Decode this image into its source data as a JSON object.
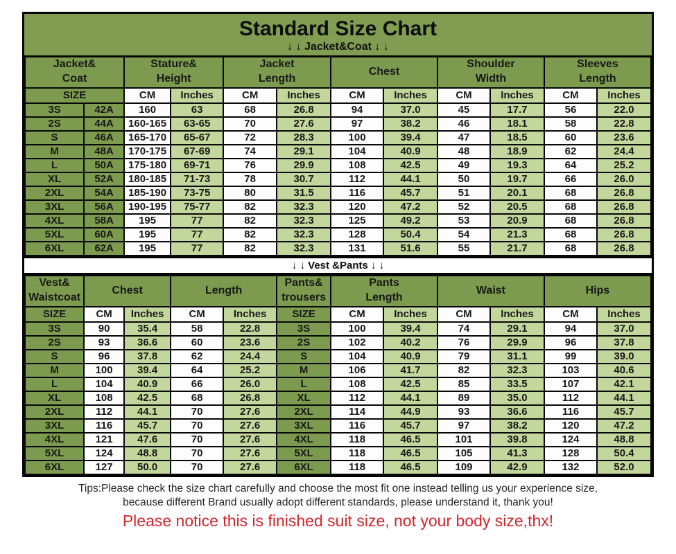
{
  "title": "Standard Size Chart",
  "colors": {
    "olive_green": "#7d9b4e",
    "light_green": "#c3d69b",
    "white": "#ffffff",
    "border_black": "#050505",
    "notice_red": "#d3242a"
  },
  "jacket_section": {
    "banner": "↓ ↓  Jacket&Coat ↓ ↓",
    "group_headers": [
      "Jacket&\nCoat",
      "Stature&\nHeight",
      "Jacket\nLength",
      "Chest",
      "Shoulder\nWidth",
      "Sleeves\nLength"
    ],
    "subheader": [
      "SIZE",
      "CM",
      "Inches",
      "CM",
      "Inches",
      "CM",
      "Inches",
      "CM",
      "Inches",
      "CM",
      "Inches"
    ],
    "rows": [
      [
        "3S",
        "42A",
        "160",
        "63",
        "68",
        "26.8",
        "94",
        "37.0",
        "45",
        "17.7",
        "56",
        "22.0"
      ],
      [
        "2S",
        "44A",
        "160-165",
        "63-65",
        "70",
        "27.6",
        "97",
        "38.2",
        "46",
        "18.1",
        "58",
        "22.8"
      ],
      [
        "S",
        "46A",
        "165-170",
        "65-67",
        "72",
        "28.3",
        "100",
        "39.4",
        "47",
        "18.5",
        "60",
        "23.6"
      ],
      [
        "M",
        "48A",
        "170-175",
        "67-69",
        "74",
        "29.1",
        "104",
        "40.9",
        "48",
        "18.9",
        "62",
        "24.4"
      ],
      [
        "L",
        "50A",
        "175-180",
        "69-71",
        "76",
        "29.9",
        "108",
        "42.5",
        "49",
        "19.3",
        "64",
        "25.2"
      ],
      [
        "XL",
        "52A",
        "180-185",
        "71-73",
        "78",
        "30.7",
        "112",
        "44.1",
        "50",
        "19.7",
        "66",
        "26.0"
      ],
      [
        "2XL",
        "54A",
        "185-190",
        "73-75",
        "80",
        "31.5",
        "116",
        "45.7",
        "51",
        "20.1",
        "68",
        "26.8"
      ],
      [
        "3XL",
        "56A",
        "190-195",
        "75-77",
        "82",
        "32.3",
        "120",
        "47.2",
        "52",
        "20.5",
        "68",
        "26.8"
      ],
      [
        "4XL",
        "58A",
        "195",
        "77",
        "82",
        "32.3",
        "125",
        "49.2",
        "53",
        "20.9",
        "68",
        "26.8"
      ],
      [
        "5XL",
        "60A",
        "195",
        "77",
        "82",
        "32.3",
        "128",
        "50.4",
        "54",
        "21.3",
        "68",
        "26.8"
      ],
      [
        "6XL",
        "62A",
        "195",
        "77",
        "82",
        "32.3",
        "131",
        "51.6",
        "55",
        "21.7",
        "68",
        "26.8"
      ]
    ]
  },
  "vest_section": {
    "banner": "↓ ↓  Vest &Pants ↓ ↓",
    "group_headers": [
      "Vest&\nWaistcoat",
      "Chest",
      "Length",
      "Pants&\ntrousers",
      "Pants\nLength",
      "Waist",
      "Hips"
    ],
    "subheader": [
      "SIZE",
      "CM",
      "Inches",
      "CM",
      "Inches",
      "SIZE",
      "CM",
      "Inches",
      "CM",
      "Inches",
      "CM",
      "Inches"
    ],
    "rows": [
      [
        "3S",
        "90",
        "35.4",
        "58",
        "22.8",
        "3S",
        "100",
        "39.4",
        "74",
        "29.1",
        "94",
        "37.0"
      ],
      [
        "2S",
        "93",
        "36.6",
        "60",
        "23.6",
        "2S",
        "102",
        "40.2",
        "76",
        "29.9",
        "96",
        "37.8"
      ],
      [
        "S",
        "96",
        "37.8",
        "62",
        "24.4",
        "S",
        "104",
        "40.9",
        "79",
        "31.1",
        "99",
        "39.0"
      ],
      [
        "M",
        "100",
        "39.4",
        "64",
        "25.2",
        "M",
        "106",
        "41.7",
        "82",
        "32.3",
        "103",
        "40.6"
      ],
      [
        "L",
        "104",
        "40.9",
        "66",
        "26.0",
        "L",
        "108",
        "42.5",
        "85",
        "33.5",
        "107",
        "42.1"
      ],
      [
        "XL",
        "108",
        "42.5",
        "68",
        "26.8",
        "XL",
        "112",
        "44.1",
        "89",
        "35.0",
        "112",
        "44.1"
      ],
      [
        "2XL",
        "112",
        "44.1",
        "70",
        "27.6",
        "2XL",
        "114",
        "44.9",
        "93",
        "36.6",
        "116",
        "45.7"
      ],
      [
        "3XL",
        "116",
        "45.7",
        "70",
        "27.6",
        "3XL",
        "116",
        "45.7",
        "97",
        "38.2",
        "120",
        "47.2"
      ],
      [
        "4XL",
        "121",
        "47.6",
        "70",
        "27.6",
        "4XL",
        "118",
        "46.5",
        "101",
        "39.8",
        "124",
        "48.8"
      ],
      [
        "5XL",
        "124",
        "48.8",
        "70",
        "27.6",
        "5XL",
        "118",
        "46.5",
        "105",
        "41.3",
        "128",
        "50.4"
      ],
      [
        "6XL",
        "127",
        "50.0",
        "70",
        "27.6",
        "6XL",
        "118",
        "46.5",
        "109",
        "42.9",
        "132",
        "52.0"
      ]
    ]
  },
  "footer": {
    "tips_line1": "Tips:Please check the size chart carefully and choose the most fit one instead telling us your experience size,",
    "tips_line2": "because different Brand usually adopt different standards, please understand it, thank you!",
    "notice": "Please notice this is finished suit size, not your body size,thx!"
  }
}
